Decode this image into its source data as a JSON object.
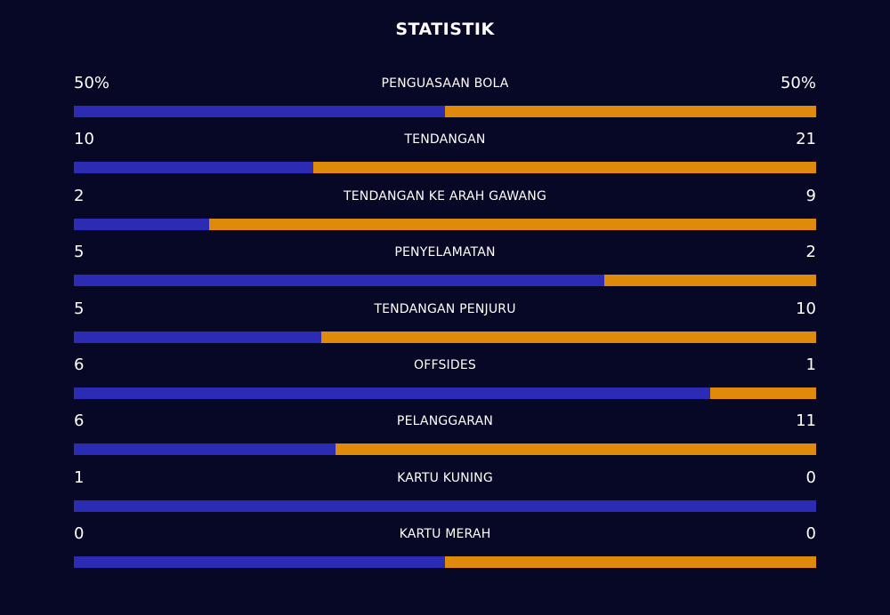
{
  "header": {
    "title": "STATISTIK"
  },
  "colors": {
    "background": "#070726",
    "home": "#2b2bb3",
    "away": "#e08a0c"
  },
  "stats": [
    {
      "label": "PENGUASAAN BOLA",
      "home_display": "50%",
      "away_display": "50%",
      "home": 50,
      "away": 50
    },
    {
      "label": "TENDANGAN",
      "home_display": "10",
      "away_display": "21",
      "home": 10,
      "away": 21
    },
    {
      "label": "TENDANGAN KE ARAH GAWANG",
      "home_display": "2",
      "away_display": "9",
      "home": 2,
      "away": 9
    },
    {
      "label": "PENYELAMATAN",
      "home_display": "5",
      "away_display": "2",
      "home": 5,
      "away": 2
    },
    {
      "label": "TENDANGAN PENJURU",
      "home_display": "5",
      "away_display": "10",
      "home": 5,
      "away": 10
    },
    {
      "label": "OFFSIDES",
      "home_display": "6",
      "away_display": "1",
      "home": 6,
      "away": 1
    },
    {
      "label": "PELANGGARAN",
      "home_display": "6",
      "away_display": "11",
      "home": 6,
      "away": 11
    },
    {
      "label": "KARTU KUNING",
      "home_display": "1",
      "away_display": "0",
      "home": 1,
      "away": 0
    },
    {
      "label": "KARTU MERAH",
      "home_display": "0",
      "away_display": "0",
      "home": 0,
      "away": 0
    }
  ]
}
